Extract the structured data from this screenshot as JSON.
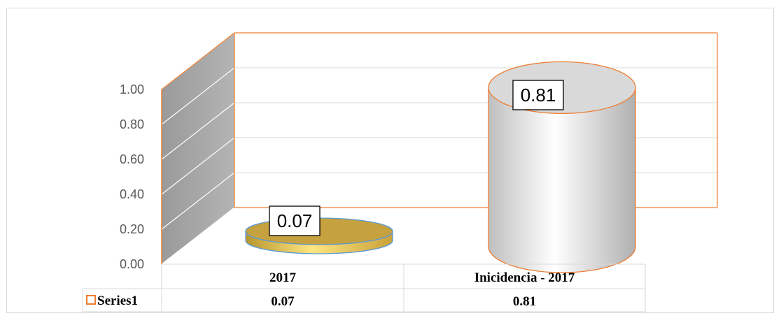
{
  "chart_data": {
    "type": "bar",
    "style": "3d-cylinder",
    "categories": [
      "2017",
      "Inicidencia - 2017"
    ],
    "series": [
      {
        "name": "Series1",
        "values": [
          0.07,
          0.81
        ]
      }
    ],
    "value_labels": [
      "0.07",
      "0.81"
    ],
    "y_ticks": [
      "0.00",
      "0.20",
      "0.40",
      "0.60",
      "0.80",
      "1.00"
    ],
    "ylim": [
      0,
      1
    ],
    "grid": true,
    "legend": "data-table",
    "colors": {
      "bar_2017": "#c9a84c",
      "bar_2017_edge": "#5b9bd5",
      "bar_incidence": "#d9d9d9",
      "bar_incidence_edge": "#ed7d31",
      "wall": "#a6a6a6",
      "axis": "#ed7d31",
      "table_border": "#d9d9d9",
      "legend_key": "#ed7d31"
    }
  }
}
